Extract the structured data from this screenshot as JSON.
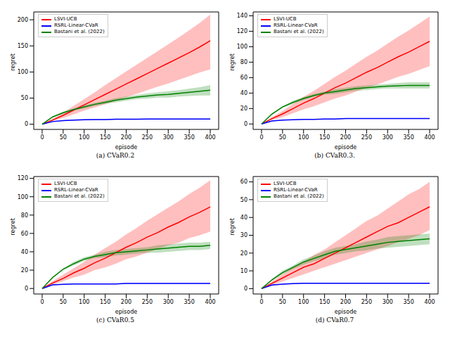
{
  "chart_data": [
    {
      "type": "line",
      "title": "(a) CVaR0.2",
      "x_label": "episode",
      "y_label": "regret",
      "legend": "upper left",
      "x": [
        0,
        25,
        50,
        75,
        100,
        125,
        150,
        175,
        200,
        225,
        250,
        275,
        300,
        325,
        350,
        375,
        400
      ],
      "xlim": [
        -20,
        420
      ],
      "xticks": [
        0,
        50,
        100,
        150,
        200,
        250,
        300,
        350,
        400
      ],
      "ylim": [
        -10,
        215
      ],
      "yticks": [
        0,
        50,
        100,
        150,
        200
      ],
      "series": [
        {
          "name": "LSVI-UCB",
          "color": "#ff0000",
          "values": [
            0,
            8,
            17,
            27,
            37,
            47,
            57,
            67,
            77,
            87,
            97,
            107,
            117,
            127,
            137,
            148,
            160
          ],
          "lower": [
            0,
            6,
            12,
            19,
            26,
            32,
            38,
            45,
            52,
            58,
            65,
            72,
            78,
            85,
            92,
            99,
            105
          ],
          "upper": [
            0,
            10,
            22,
            35,
            48,
            61,
            75,
            88,
            101,
            114,
            127,
            140,
            153,
            166,
            180,
            194,
            210
          ]
        },
        {
          "name": "RSRL-Linear-CVaR",
          "color": "#0000ff",
          "values": [
            0,
            5,
            7,
            8,
            8.5,
            9,
            9,
            9.5,
            9.5,
            9.5,
            10,
            10,
            10,
            10,
            10,
            10,
            10
          ],
          "lower": [
            0,
            4,
            6,
            7,
            7.5,
            8,
            8,
            8.5,
            8.5,
            8.5,
            9,
            9,
            9,
            9,
            9,
            9,
            9
          ],
          "upper": [
            0,
            6,
            8,
            9,
            9.5,
            10,
            10,
            10.5,
            10.5,
            10.5,
            11,
            11,
            11,
            11,
            11,
            11,
            11
          ]
        },
        {
          "name": "Bastani et al. (2022)",
          "color": "#008000",
          "values": [
            0,
            14,
            22,
            28,
            33,
            38,
            42,
            46,
            49,
            52,
            54,
            56,
            57,
            59,
            61,
            63,
            65
          ],
          "lower": [
            0,
            13,
            20,
            26,
            30,
            35,
            39,
            42,
            45,
            48,
            49,
            51,
            51,
            53,
            54,
            55,
            55
          ],
          "upper": [
            0,
            15,
            24,
            30,
            36,
            41,
            45,
            50,
            53,
            56,
            59,
            61,
            63,
            65,
            68,
            71,
            75
          ]
        }
      ]
    },
    {
      "type": "line",
      "title": "(b) CVaR0.3.",
      "x_label": "episode",
      "y_label": "regret",
      "legend": "upper left",
      "x": [
        0,
        25,
        50,
        75,
        100,
        125,
        150,
        175,
        200,
        225,
        250,
        275,
        300,
        325,
        350,
        375,
        400
      ],
      "xlim": [
        -20,
        420
      ],
      "xticks": [
        0,
        50,
        100,
        150,
        200,
        250,
        300,
        350,
        400
      ],
      "ylim": [
        -7,
        145
      ],
      "yticks": [
        0,
        20,
        40,
        60,
        80,
        100,
        120,
        140
      ],
      "series": [
        {
          "name": "LSVI-UCB",
          "color": "#ff0000",
          "values": [
            0,
            7,
            13,
            20,
            27,
            33,
            40,
            47,
            53,
            60,
            67,
            73,
            80,
            87,
            93,
            100,
            107
          ],
          "lower": [
            0,
            5,
            9,
            14,
            19,
            23,
            28,
            33,
            37,
            42,
            47,
            51,
            56,
            61,
            65,
            70,
            75
          ],
          "upper": [
            0,
            9,
            17,
            26,
            35,
            43,
            52,
            61,
            69,
            78,
            87,
            95,
            104,
            113,
            121,
            130,
            139
          ]
        },
        {
          "name": "RSRL-Linear-CVaR",
          "color": "#0000ff",
          "values": [
            0,
            4,
            5,
            5.5,
            6,
            6,
            6.5,
            6.5,
            7,
            7,
            7,
            7,
            7,
            7,
            7,
            7,
            7
          ],
          "lower": [
            0,
            3.5,
            4.5,
            5,
            5.5,
            5.5,
            6,
            6,
            6.5,
            6.5,
            6.5,
            6.5,
            6.5,
            6.5,
            6.5,
            6.5,
            6.5
          ],
          "upper": [
            0,
            4.5,
            5.5,
            6,
            6.5,
            6.5,
            7,
            7,
            7.5,
            7.5,
            7.5,
            7.5,
            7.5,
            7.5,
            7.5,
            7.5,
            7.5
          ]
        },
        {
          "name": "Bastani et al. (2022)",
          "color": "#008000",
          "values": [
            0,
            13,
            22,
            28,
            33,
            37,
            40,
            42,
            44,
            46,
            47,
            48,
            49,
            49.5,
            50,
            50,
            50
          ],
          "lower": [
            0,
            12,
            21,
            26,
            31,
            35,
            38,
            39,
            41,
            43,
            44,
            45,
            46,
            46,
            46,
            46,
            46
          ],
          "upper": [
            0,
            14,
            23,
            30,
            35,
            39,
            42,
            45,
            47,
            49,
            50,
            51,
            52,
            53,
            54,
            54,
            54
          ]
        }
      ]
    },
    {
      "type": "line",
      "title": "(c) CVaR0.5",
      "x_label": "episode",
      "y_label": "regret",
      "legend": "upper left",
      "x": [
        0,
        25,
        50,
        75,
        100,
        125,
        150,
        175,
        200,
        225,
        250,
        275,
        300,
        325,
        350,
        375,
        400
      ],
      "xlim": [
        -20,
        420
      ],
      "xticks": [
        0,
        50,
        100,
        150,
        200,
        250,
        300,
        350,
        400
      ],
      "ylim": [
        -6,
        122
      ],
      "yticks": [
        0,
        20,
        40,
        60,
        80,
        100,
        120
      ],
      "series": [
        {
          "name": "LSVI-UCB",
          "color": "#ff0000",
          "values": [
            0,
            6,
            11,
            17,
            22,
            28,
            33,
            39,
            45,
            50,
            56,
            61,
            67,
            72,
            78,
            83,
            89
          ],
          "lower": [
            0,
            4,
            8,
            12,
            15,
            20,
            23,
            27,
            32,
            35,
            39,
            43,
            47,
            50,
            55,
            58,
            62
          ],
          "upper": [
            0,
            8,
            15,
            22,
            29,
            37,
            44,
            51,
            59,
            66,
            74,
            81,
            88,
            95,
            103,
            110,
            118
          ]
        },
        {
          "name": "RSRL-Linear-CVaR",
          "color": "#0000ff",
          "values": [
            0,
            4,
            4.5,
            5,
            5,
            5,
            5,
            5,
            5.5,
            5.5,
            5.5,
            5.5,
            5.5,
            5.5,
            5.5,
            5.5,
            5.5
          ],
          "lower": [
            0,
            3.5,
            4,
            4.5,
            4.5,
            4.5,
            4.5,
            4.5,
            5,
            5,
            5,
            5,
            5,
            5,
            5,
            5,
            5
          ],
          "upper": [
            0,
            4.5,
            5,
            5.5,
            5.5,
            5.5,
            5.5,
            5.5,
            6,
            6,
            6,
            6,
            6,
            6,
            6,
            6,
            6
          ]
        },
        {
          "name": "Bastani et al. (2022)",
          "color": "#008000",
          "values": [
            0,
            12,
            21,
            27,
            32,
            35,
            37,
            39,
            40,
            41,
            42,
            43,
            44,
            45,
            46,
            46,
            47
          ],
          "lower": [
            0,
            11,
            20,
            25,
            30,
            33,
            34,
            36,
            37,
            38,
            39,
            39,
            40,
            41,
            42,
            42,
            43
          ],
          "upper": [
            0,
            13,
            22,
            29,
            34,
            37,
            40,
            42,
            43,
            44,
            45,
            47,
            48,
            49,
            50,
            50,
            51
          ]
        }
      ]
    },
    {
      "type": "line",
      "title": "(d) CVaR0.7",
      "x_label": "episode",
      "y_label": "regret",
      "legend": "upper left",
      "x": [
        0,
        25,
        50,
        75,
        100,
        125,
        150,
        175,
        200,
        225,
        250,
        275,
        300,
        325,
        350,
        375,
        400
      ],
      "xlim": [
        -20,
        420
      ],
      "xticks": [
        0,
        50,
        100,
        150,
        200,
        250,
        300,
        350,
        400
      ],
      "ylim": [
        -3,
        63
      ],
      "yticks": [
        0,
        10,
        20,
        30,
        40,
        50,
        60
      ],
      "series": [
        {
          "name": "LSVI-UCB",
          "color": "#ff0000",
          "values": [
            0,
            3,
            6,
            9,
            12,
            14,
            17,
            20,
            23,
            26,
            29,
            32,
            35,
            37,
            40,
            43,
            46
          ],
          "lower": [
            0,
            2,
            4,
            6,
            8,
            10,
            12,
            14,
            16,
            18,
            20,
            22,
            24,
            26,
            28,
            30,
            33
          ],
          "upper": [
            0,
            4,
            8,
            12,
            15,
            19,
            22,
            26,
            30,
            34,
            38,
            41,
            45,
            49,
            53,
            56,
            60
          ]
        },
        {
          "name": "RSRL-Linear-CVaR",
          "color": "#0000ff",
          "values": [
            0,
            2,
            2.5,
            2.8,
            3,
            3,
            3,
            3,
            3,
            3,
            3,
            3,
            3,
            3,
            3,
            3,
            3
          ],
          "lower": [
            0,
            1.7,
            2.2,
            2.5,
            2.7,
            2.7,
            2.7,
            2.7,
            2.7,
            2.7,
            2.7,
            2.7,
            2.7,
            2.7,
            2.7,
            2.7,
            2.7
          ],
          "upper": [
            0,
            2.3,
            2.8,
            3.1,
            3.3,
            3.3,
            3.3,
            3.3,
            3.3,
            3.3,
            3.3,
            3.3,
            3.3,
            3.3,
            3.3,
            3.3,
            3.3
          ]
        },
        {
          "name": "Bastani et al. (2022)",
          "color": "#008000",
          "values": [
            0,
            5,
            9,
            12,
            15,
            17,
            19,
            21,
            22,
            23,
            24,
            25,
            26,
            26.5,
            27,
            27.5,
            28
          ],
          "lower": [
            0,
            4.5,
            8,
            11,
            13.5,
            15.5,
            17,
            19,
            20,
            21,
            21.5,
            22.5,
            23,
            23.5,
            24,
            24.5,
            25
          ],
          "upper": [
            0,
            5.5,
            10,
            13,
            16.5,
            18.5,
            21,
            23,
            24,
            25,
            26.5,
            27.5,
            29,
            29.5,
            30,
            30.5,
            31
          ]
        }
      ]
    }
  ]
}
